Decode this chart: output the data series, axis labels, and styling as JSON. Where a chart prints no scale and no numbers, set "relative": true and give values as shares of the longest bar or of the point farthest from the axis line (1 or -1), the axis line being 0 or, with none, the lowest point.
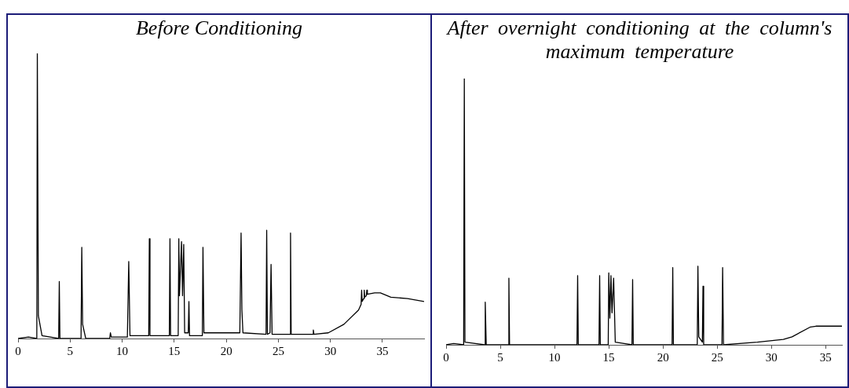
{
  "chart_data": [
    {
      "type": "line",
      "title": "Before Conditioning",
      "relative": true,
      "color": "#000000",
      "marker": "none",
      "xlim": [
        0,
        39
      ],
      "xticks": [
        0,
        5,
        10,
        15,
        20,
        25,
        30,
        35
      ],
      "x": [
        0,
        1.0,
        1.8,
        1.85,
        1.95,
        2.3,
        3.9,
        3.96,
        4.02,
        6.05,
        6.12,
        6.2,
        6.5,
        8.8,
        8.87,
        8.95,
        10.5,
        10.63,
        10.75,
        12.55,
        12.61,
        12.67,
        14.53,
        14.59,
        14.65,
        15.38,
        15.44,
        15.5,
        15.7,
        15.8,
        15.91,
        16.0,
        16.35,
        16.41,
        16.47,
        17.7,
        17.76,
        17.85,
        21.3,
        21.42,
        21.5,
        21.6,
        23.82,
        23.88,
        23.95,
        24.2,
        24.3,
        24.4,
        26.11,
        26.17,
        26.23,
        28.3,
        28.36,
        28.42,
        29.8,
        31.3,
        32.7,
        32.95,
        33.0,
        33.05,
        33.2,
        33.25,
        33.3,
        33.45,
        33.5,
        33.55,
        34.25,
        34.8,
        35.8,
        37.4,
        39
      ],
      "values": [
        0,
        0.005,
        0,
        1.0,
        0.08,
        0.01,
        0,
        0.2,
        0,
        0,
        0.32,
        0.05,
        0,
        0,
        0.02,
        0.005,
        0.005,
        0.27,
        0.01,
        0.01,
        0.35,
        0.01,
        0.01,
        0.35,
        0.01,
        0.01,
        0.35,
        0.15,
        0.34,
        0.15,
        0.33,
        0.02,
        0.02,
        0.13,
        0.01,
        0.01,
        0.32,
        0.02,
        0.02,
        0.37,
        0.1,
        0.02,
        0.015,
        0.38,
        0.015,
        0.02,
        0.26,
        0.015,
        0.015,
        0.37,
        0.015,
        0.015,
        0.03,
        0.015,
        0.02,
        0.05,
        0.1,
        0.12,
        0.17,
        0.13,
        0.14,
        0.17,
        0.145,
        0.15,
        0.17,
        0.155,
        0.16,
        0.16,
        0.145,
        0.14,
        0.13
      ]
    },
    {
      "type": "line",
      "title": "After overnight conditioning at the column's maximum temperature",
      "relative": true,
      "color": "#000000",
      "marker": "none",
      "xlim": [
        0,
        36.5
      ],
      "xticks": [
        0,
        5,
        10,
        15,
        20,
        25,
        30,
        35
      ],
      "x": [
        0,
        0.7,
        1.62,
        1.68,
        1.74,
        3.55,
        3.61,
        3.7,
        5.73,
        5.79,
        5.85,
        12.07,
        12.13,
        12.19,
        14.1,
        14.16,
        14.22,
        14.95,
        15.0,
        15.1,
        15.2,
        15.3,
        15.45,
        15.6,
        17.14,
        17.2,
        17.26,
        20.84,
        20.9,
        20.96,
        23.16,
        23.22,
        23.3,
        23.63,
        23.69,
        23.75,
        25.44,
        25.5,
        25.58,
        28.7,
        31.1,
        31.9,
        33.6,
        34.1,
        36.5
      ],
      "values": [
        0,
        0.005,
        0,
        1.0,
        0.01,
        0,
        0.16,
        0,
        0,
        0.25,
        0,
        0,
        0.26,
        0,
        0,
        0.26,
        0,
        0,
        0.27,
        0.1,
        0.26,
        0.12,
        0.25,
        0.01,
        0,
        0.245,
        0,
        0,
        0.29,
        0,
        0,
        0.295,
        0.03,
        0.01,
        0.22,
        0,
        0,
        0.29,
        0,
        0.01,
        0.02,
        0.03,
        0.067,
        0.07,
        0.07
      ]
    }
  ]
}
